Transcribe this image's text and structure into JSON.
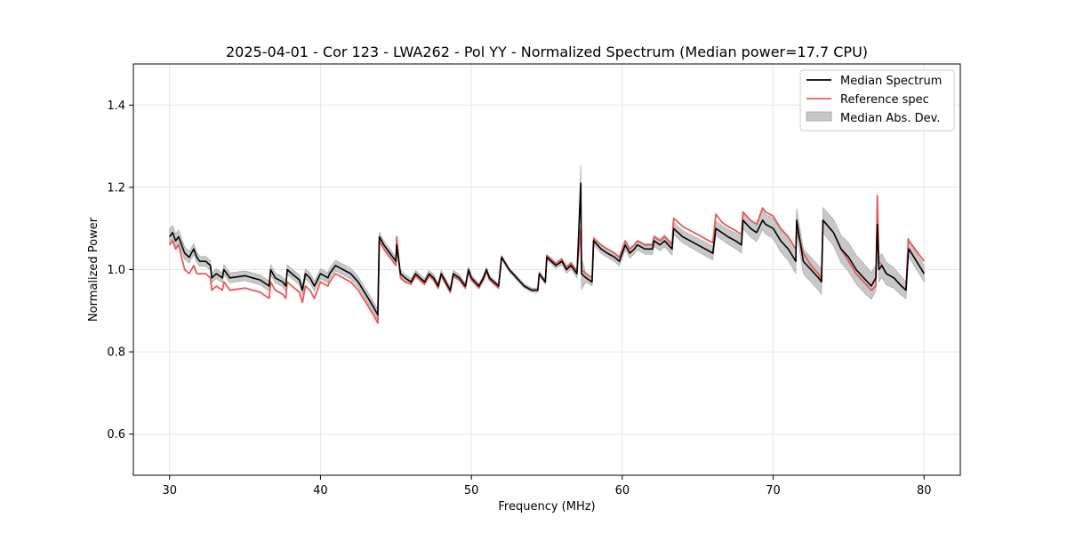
{
  "chart_data": {
    "type": "line",
    "title": "2025-04-01 - Cor 123 - LWA262 - Pol YY - Normalized Spectrum (Median power=17.7 CPU)",
    "xlabel": "Frequency (MHz)",
    "ylabel": "Normalized Power",
    "xlim": [
      27.6,
      82.4
    ],
    "ylim": [
      0.5,
      1.5
    ],
    "xticks": [
      30,
      40,
      50,
      60,
      70,
      80
    ],
    "yticks": [
      0.6,
      0.8,
      1.0,
      1.2,
      1.4
    ],
    "xtick_labels": [
      "30",
      "40",
      "50",
      "60",
      "70",
      "80"
    ],
    "ytick_labels": [
      "0.6",
      "0.8",
      "1.0",
      "1.2",
      "1.4"
    ],
    "grid": true,
    "legend_position": "top-right",
    "legend": [
      "Median Spectrum",
      "Reference spec",
      "Median Abs. Dev."
    ],
    "colors": {
      "median": "#000000",
      "reference": "#e8585a",
      "mad_fill": "#c8c8c8",
      "mad_edge": "#a0a0a0",
      "grid": "#e6e6e6"
    },
    "series": [
      {
        "name": "Median Spectrum",
        "x": [
          30.0,
          30.2,
          30.4,
          30.6,
          30.8,
          31.0,
          31.3,
          31.6,
          31.8,
          32.0,
          32.4,
          32.7,
          32.8,
          33.1,
          33.5,
          33.6,
          34.0,
          35.0,
          35.5,
          36.0,
          36.6,
          36.7,
          37.0,
          37.5,
          37.7,
          37.8,
          38.1,
          38.6,
          38.8,
          39.0,
          39.3,
          39.6,
          40.0,
          40.5,
          40.6,
          41.0,
          41.5,
          42.0,
          42.5,
          43.0,
          43.5,
          43.8,
          43.9,
          44.2,
          44.6,
          45.0,
          45.05,
          45.3,
          45.6,
          46.0,
          46.3,
          46.6,
          46.9,
          47.2,
          47.5,
          47.8,
          48.0,
          48.3,
          48.6,
          48.8,
          49.2,
          49.6,
          49.8,
          50.0,
          50.5,
          50.8,
          51.0,
          51.2,
          51.5,
          51.8,
          52.0,
          52.5,
          53.0,
          53.5,
          54.0,
          54.4,
          54.5,
          54.9,
          55.0,
          55.6,
          56.0,
          56.3,
          56.6,
          57.0,
          57.25,
          57.3,
          57.6,
          58.0,
          58.1,
          58.6,
          59.0,
          59.5,
          59.8,
          60.2,
          60.5,
          60.8,
          61.0,
          61.5,
          62.0,
          62.1,
          62.5,
          62.8,
          63.3,
          63.4,
          64.0,
          64.5,
          65.0,
          65.5,
          66.0,
          66.2,
          66.6,
          67.0,
          67.5,
          67.9,
          68.0,
          68.5,
          68.9,
          69.3,
          69.5,
          70.0,
          70.5,
          71.0,
          71.5,
          71.55,
          72.0,
          72.5,
          73.0,
          73.2,
          73.3,
          74.0,
          74.5,
          75.0,
          75.5,
          76.0,
          76.5,
          76.8,
          76.9,
          77.0,
          77.2,
          77.5,
          78.0,
          78.5,
          78.8,
          78.95,
          79.0,
          79.5,
          80.0
        ],
        "values": [
          1.08,
          1.09,
          1.07,
          1.08,
          1.06,
          1.04,
          1.03,
          1.05,
          1.03,
          1.02,
          1.02,
          1.01,
          0.98,
          0.99,
          0.98,
          1.0,
          0.98,
          0.985,
          0.98,
          0.975,
          0.96,
          1.0,
          0.98,
          0.97,
          0.96,
          1.0,
          0.99,
          0.975,
          0.95,
          0.99,
          0.98,
          0.96,
          0.99,
          0.98,
          0.99,
          1.01,
          1.0,
          0.99,
          0.97,
          0.94,
          0.91,
          0.89,
          1.08,
          1.06,
          1.04,
          1.02,
          1.06,
          0.99,
          0.98,
          0.97,
          0.99,
          0.98,
          0.97,
          0.99,
          0.98,
          0.96,
          0.99,
          0.97,
          0.95,
          0.99,
          0.98,
          0.96,
          1.0,
          0.98,
          0.96,
          0.98,
          1.0,
          0.98,
          0.97,
          0.96,
          1.03,
          1.0,
          0.98,
          0.96,
          0.95,
          0.95,
          0.99,
          0.97,
          1.03,
          1.01,
          1.02,
          1.0,
          1.01,
          0.99,
          1.21,
          0.99,
          0.98,
          0.97,
          1.07,
          1.05,
          1.04,
          1.03,
          1.02,
          1.06,
          1.04,
          1.05,
          1.06,
          1.05,
          1.05,
          1.07,
          1.06,
          1.07,
          1.05,
          1.1,
          1.08,
          1.07,
          1.06,
          1.05,
          1.04,
          1.1,
          1.09,
          1.08,
          1.07,
          1.06,
          1.12,
          1.1,
          1.09,
          1.12,
          1.11,
          1.1,
          1.07,
          1.05,
          1.02,
          1.12,
          1.02,
          1.0,
          0.98,
          0.97,
          1.12,
          1.09,
          1.05,
          1.03,
          1.0,
          0.98,
          0.96,
          0.98,
          1.11,
          1.0,
          1.01,
          0.99,
          0.98,
          0.96,
          0.95,
          1.04,
          1.05,
          1.02,
          0.99
        ]
      },
      {
        "name": "Reference spec",
        "x": [
          30.0,
          30.2,
          30.4,
          30.6,
          30.8,
          31.0,
          31.3,
          31.6,
          31.8,
          32.0,
          32.4,
          32.7,
          32.8,
          33.1,
          33.5,
          33.6,
          34.0,
          35.0,
          35.5,
          36.0,
          36.6,
          36.7,
          37.0,
          37.5,
          37.7,
          37.8,
          38.1,
          38.6,
          38.8,
          39.0,
          39.3,
          39.6,
          40.0,
          40.5,
          40.6,
          41.0,
          41.5,
          42.0,
          42.5,
          43.0,
          43.5,
          43.8,
          43.9,
          44.2,
          44.6,
          45.0,
          45.05,
          45.3,
          45.6,
          46.0,
          46.3,
          46.6,
          46.9,
          47.2,
          47.5,
          47.8,
          48.0,
          48.3,
          48.6,
          48.8,
          49.2,
          49.6,
          49.8,
          50.0,
          50.5,
          50.8,
          51.0,
          51.2,
          51.5,
          51.8,
          52.0,
          52.5,
          53.0,
          53.5,
          54.0,
          54.4,
          54.5,
          54.9,
          55.0,
          55.6,
          56.0,
          56.3,
          56.6,
          57.0,
          57.25,
          57.3,
          57.6,
          58.0,
          58.1,
          58.6,
          59.0,
          59.5,
          59.8,
          60.2,
          60.5,
          60.8,
          61.0,
          61.5,
          62.0,
          62.1,
          62.5,
          62.8,
          63.3,
          63.4,
          64.0,
          64.5,
          65.0,
          65.5,
          66.0,
          66.2,
          66.6,
          67.0,
          67.5,
          67.9,
          68.0,
          68.5,
          68.9,
          69.3,
          69.5,
          70.0,
          70.5,
          71.0,
          71.5,
          71.55,
          72.0,
          72.5,
          73.0,
          73.2,
          73.3,
          74.0,
          74.5,
          75.0,
          75.5,
          76.0,
          76.5,
          76.8,
          76.9,
          77.0,
          77.2,
          77.5,
          78.0,
          78.5,
          78.8,
          78.95,
          79.0,
          79.5,
          80.0
        ],
        "values": [
          1.06,
          1.07,
          1.05,
          1.06,
          1.03,
          1.0,
          0.99,
          1.01,
          0.99,
          0.99,
          0.99,
          0.98,
          0.95,
          0.96,
          0.95,
          0.97,
          0.95,
          0.955,
          0.95,
          0.945,
          0.93,
          0.97,
          0.95,
          0.94,
          0.93,
          0.97,
          0.96,
          0.945,
          0.92,
          0.96,
          0.95,
          0.93,
          0.97,
          0.96,
          0.97,
          0.99,
          0.98,
          0.97,
          0.95,
          0.92,
          0.89,
          0.87,
          1.07,
          1.05,
          1.03,
          1.01,
          1.08,
          0.98,
          0.97,
          0.965,
          0.985,
          0.975,
          0.965,
          0.985,
          0.975,
          0.955,
          0.985,
          0.965,
          0.945,
          0.985,
          0.975,
          0.955,
          0.995,
          0.975,
          0.955,
          0.975,
          0.995,
          0.975,
          0.965,
          0.955,
          1.03,
          1.0,
          0.98,
          0.96,
          0.95,
          0.95,
          0.99,
          0.97,
          1.035,
          1.015,
          1.025,
          1.005,
          1.015,
          0.995,
          1.1,
          1.0,
          0.99,
          0.98,
          1.075,
          1.06,
          1.05,
          1.04,
          1.03,
          1.07,
          1.05,
          1.06,
          1.07,
          1.06,
          1.06,
          1.08,
          1.07,
          1.08,
          1.06,
          1.125,
          1.105,
          1.095,
          1.085,
          1.075,
          1.065,
          1.135,
          1.115,
          1.105,
          1.095,
          1.085,
          1.14,
          1.12,
          1.11,
          1.15,
          1.14,
          1.13,
          1.1,
          1.08,
          1.05,
          1.1,
          1.04,
          1.01,
          0.99,
          0.975,
          1.12,
          1.09,
          1.05,
          1.02,
          0.99,
          0.97,
          0.95,
          0.96,
          1.18,
          1.02,
          1.01,
          0.99,
          0.98,
          0.96,
          0.95,
          1.075,
          1.07,
          1.045,
          1.02
        ]
      },
      {
        "name": "Median Abs. Dev.",
        "x": [
          30.0,
          31.0,
          32.0,
          33.0,
          34.0,
          35.0,
          36.0,
          37.0,
          38.0,
          39.0,
          40.0,
          41.0,
          42.0,
          43.0,
          43.8,
          44.0,
          45.0,
          46.0,
          47.0,
          48.0,
          49.0,
          50.0,
          51.0,
          52.0,
          53.0,
          54.0,
          55.0,
          56.0,
          57.0,
          57.25,
          57.5,
          58.0,
          59.0,
          60.0,
          61.0,
          62.0,
          63.0,
          64.0,
          65.0,
          66.0,
          67.0,
          68.0,
          69.0,
          70.0,
          71.0,
          72.0,
          73.0,
          74.0,
          75.0,
          76.0,
          77.0,
          78.0,
          79.0,
          80.0
        ],
        "values": [
          0.018,
          0.015,
          0.012,
          0.012,
          0.012,
          0.012,
          0.012,
          0.012,
          0.012,
          0.012,
          0.012,
          0.013,
          0.013,
          0.013,
          0.013,
          0.01,
          0.01,
          0.008,
          0.008,
          0.008,
          0.008,
          0.007,
          0.006,
          0.005,
          0.005,
          0.005,
          0.006,
          0.008,
          0.01,
          0.045,
          0.01,
          0.01,
          0.01,
          0.012,
          0.012,
          0.013,
          0.015,
          0.015,
          0.016,
          0.017,
          0.018,
          0.02,
          0.022,
          0.025,
          0.028,
          0.03,
          0.03,
          0.032,
          0.035,
          0.035,
          0.03,
          0.025,
          0.02,
          0.02
        ]
      }
    ]
  }
}
